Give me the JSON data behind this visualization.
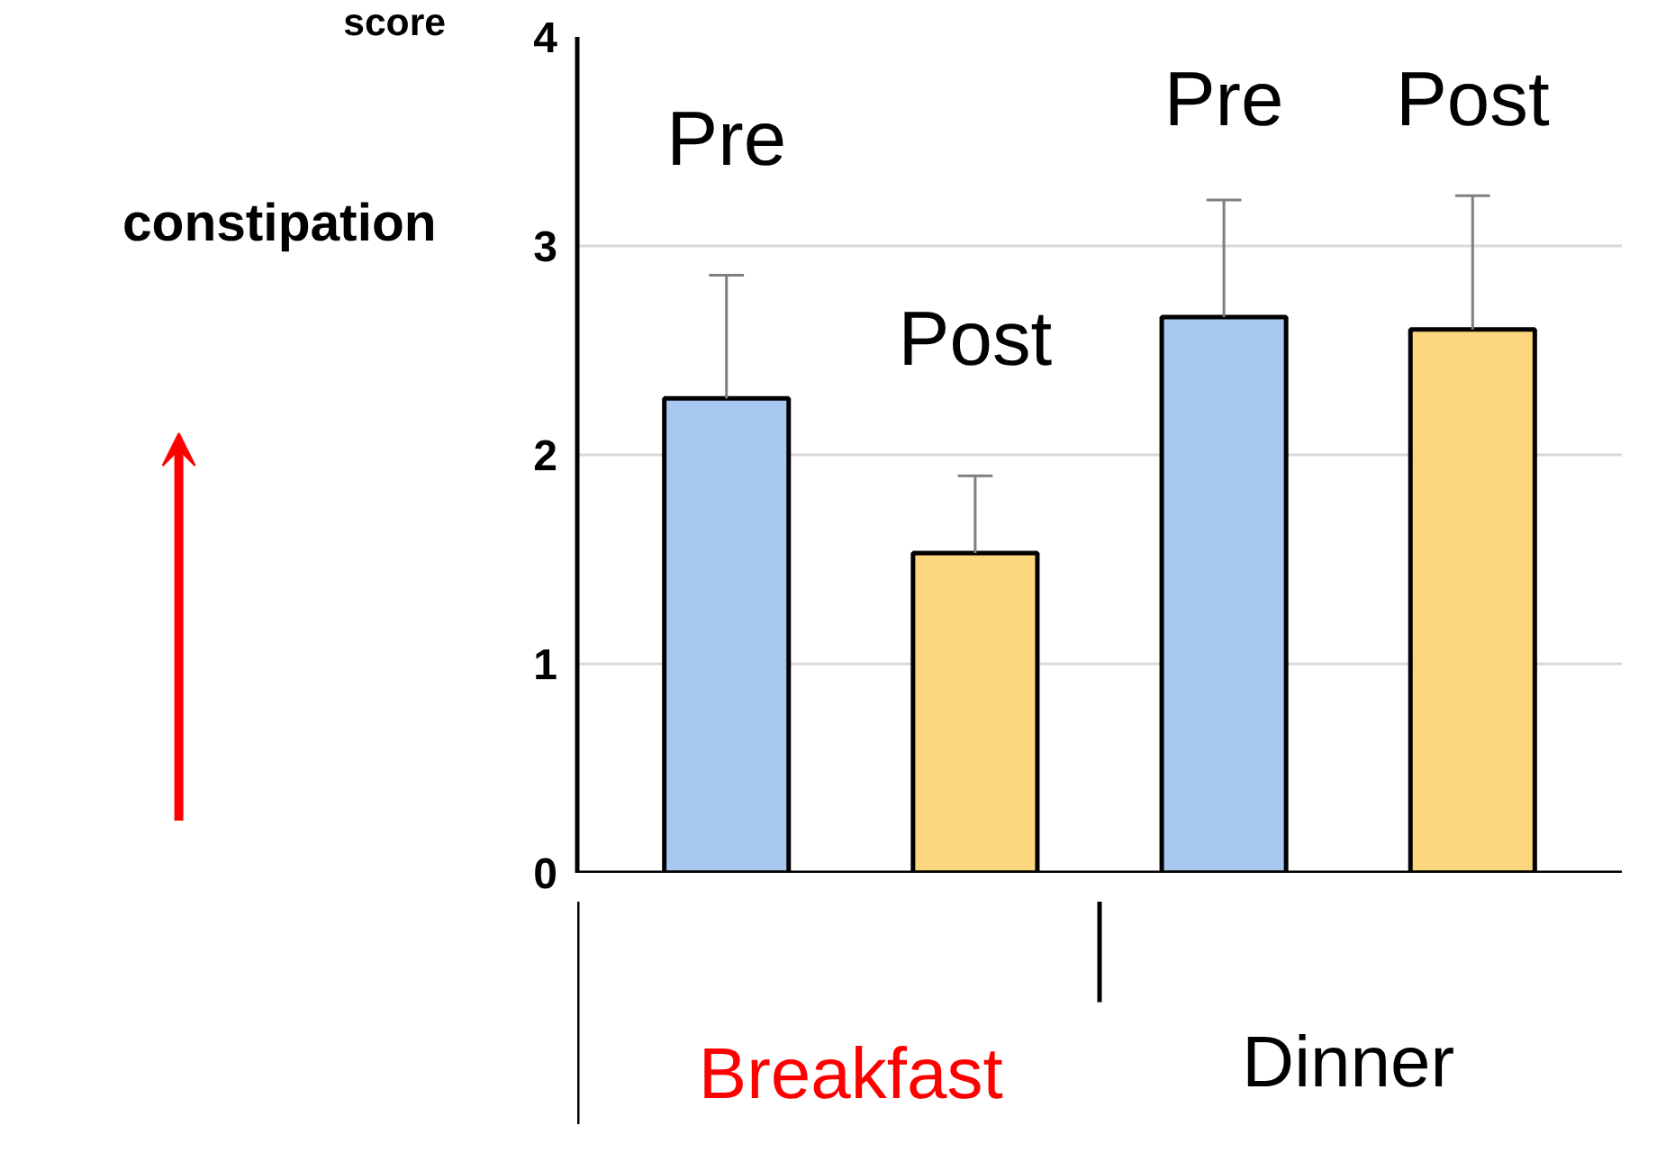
{
  "chart_data": {
    "type": "bar",
    "ylabel": "constipation",
    "annotations": [
      "score",
      "Breakfast",
      "Dinner"
    ],
    "categories": [
      "Pre",
      "Post",
      "Pre",
      "Post"
    ],
    "values": [
      2.27,
      1.53,
      2.66,
      2.6
    ],
    "colors": [
      "#a8c8f2",
      "#fcd77e",
      "#a8c8f2",
      "#fcd77e"
    ],
    "errors": [
      [
        2.27,
        2.86
      ],
      [
        1.53,
        1.9
      ],
      [
        2.66,
        3.22
      ],
      [
        2.6,
        3.24
      ]
    ],
    "ylim": [
      0,
      4
    ],
    "yticks": [
      0,
      1,
      2,
      3,
      4
    ],
    "grid": "y"
  }
}
